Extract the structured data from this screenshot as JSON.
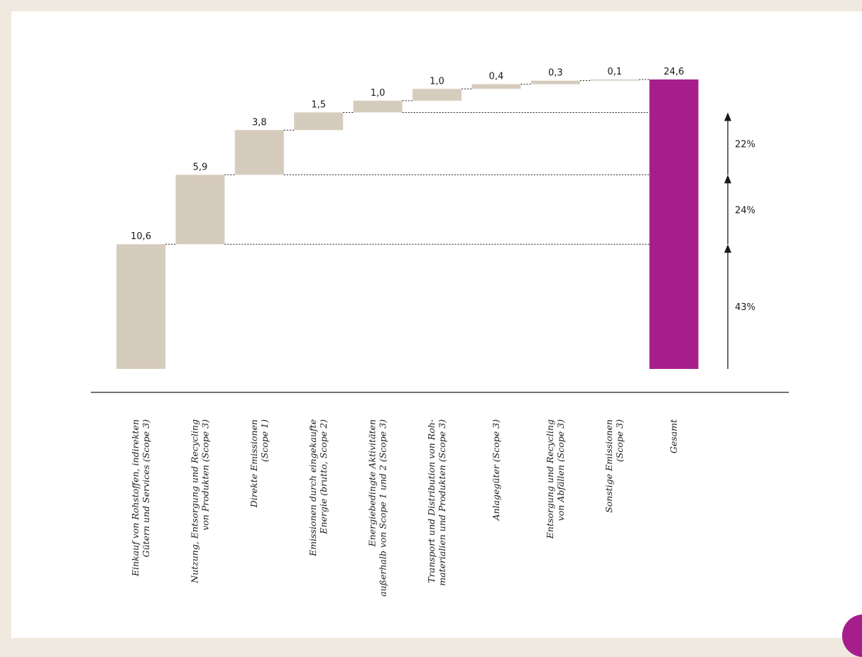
{
  "colors": {
    "step": "#d6ccbd",
    "total": "#a61e8c",
    "line": "#1a1a1a",
    "background": "#efe9df"
  },
  "chart_data": {
    "type": "bar",
    "subtype": "waterfall",
    "title": "",
    "xlabel": "",
    "ylabel": "",
    "ylim": [
      0,
      24.6
    ],
    "grid": false,
    "legend": "none",
    "categories": [
      [
        "Einkauf von Rohstoffen, indirekten",
        "Gütern und Services (Scope 3)"
      ],
      [
        "Nutzung, Entsorgung und Recycling",
        "von Produkten (Scope 3)"
      ],
      [
        "Direkte Emissionen",
        "(Scope 1)"
      ],
      [
        "Emissionen durch eingekaufte",
        "Energie (brutto, Scope 2)"
      ],
      [
        "Energiebedingte Aktivitäten",
        "außerhalb von Scope 1 und 2 (Scope 3)"
      ],
      [
        "Transport und Distribution von Roh-",
        "materialien und Produkten (Scope 3)"
      ],
      [
        "Anlagegüter (Scope 3)"
      ],
      [
        "Entsorgung und Recycling",
        "von Abfällen (Scope 3)"
      ],
      [
        "Sonstige Emissionen",
        "(Scope 3)"
      ],
      [
        "Gesamt"
      ]
    ],
    "values": [
      10.6,
      5.9,
      3.8,
      1.5,
      1.0,
      1.0,
      0.4,
      0.3,
      0.1,
      24.6
    ],
    "value_labels": [
      "10,6",
      "5,9",
      "3,8",
      "1,5",
      "1,0",
      "1,0",
      "0,4",
      "0,3",
      "0,1",
      "24,6"
    ],
    "total_index": 9,
    "share_annotations": [
      {
        "from": 0,
        "to": 10.6,
        "label": "43%"
      },
      {
        "from": 10.6,
        "to": 16.5,
        "label": "24%"
      },
      {
        "from": 16.5,
        "to": 21.8,
        "label": "22%"
      }
    ]
  }
}
